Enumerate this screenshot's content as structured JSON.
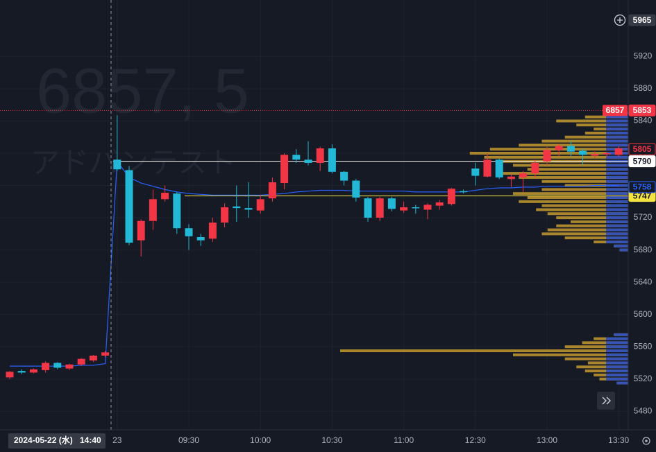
{
  "chart_data": {
    "type": "candlestick",
    "watermark": {
      "symbol_line": "6857, 5",
      "name": "アドバンテスト"
    },
    "categories": [
      null,
      null,
      null,
      null,
      null,
      null,
      null,
      null,
      null,
      "23",
      null,
      null,
      null,
      null,
      null,
      "09:30",
      null,
      null,
      null,
      null,
      null,
      "10:00",
      null,
      null,
      null,
      null,
      null,
      "10:30",
      null,
      null,
      null,
      null,
      null,
      "11:00",
      null,
      null,
      null,
      null,
      null,
      "12:30",
      null,
      null,
      null,
      null,
      null,
      "13:00",
      null,
      null,
      null,
      null,
      null,
      "13:30"
    ],
    "open": [
      5522,
      5530,
      5528,
      5531,
      5540,
      5533,
      5538,
      5543,
      5549,
      5792,
      5779,
      5692,
      5716,
      5743,
      5750,
      5707,
      5696,
      5694,
      5714,
      5734,
      5732,
      5729,
      5744,
      5763,
      5798,
      5792,
      5788,
      5806,
      5777,
      5766,
      5744,
      5720,
      5744,
      5729,
      5733,
      5730,
      5735,
      5737,
      5753,
      5781,
      5771,
      5792,
      5768,
      5770,
      5775,
      5790,
      5804,
      5809,
      5803,
      5797,
      5799,
      5798
    ],
    "high": [
      5530,
      5532,
      5533,
      5542,
      5541,
      5539,
      5546,
      5550,
      5555,
      5847,
      5784,
      5718,
      5755,
      5760,
      5752,
      5712,
      5700,
      5720,
      5738,
      5760,
      5764,
      5748,
      5770,
      5800,
      5805,
      5815,
      5808,
      5811,
      5778,
      5768,
      5746,
      5746,
      5746,
      5740,
      5736,
      5738,
      5742,
      5757,
      5755,
      5788,
      5800,
      5793,
      5774,
      5778,
      5792,
      5808,
      5812,
      5815,
      5806,
      5802,
      5802,
      5808
    ],
    "low": [
      5520,
      5526,
      5527,
      5528,
      5532,
      5531,
      5536,
      5541,
      5547,
      5778,
      5686,
      5672,
      5705,
      5740,
      5700,
      5680,
      5685,
      5690,
      5708,
      5715,
      5720,
      5725,
      5740,
      5755,
      5788,
      5785,
      5778,
      5775,
      5760,
      5740,
      5715,
      5716,
      5728,
      5726,
      5725,
      5718,
      5730,
      5735,
      5750,
      5760,
      5770,
      5768,
      5758,
      5752,
      5770,
      5785,
      5796,
      5796,
      5786,
      5794,
      5795,
      5796
    ],
    "close": [
      5529,
      5528,
      5532,
      5540,
      5534,
      5538,
      5545,
      5549,
      5553,
      5780,
      5689,
      5716,
      5743,
      5751,
      5707,
      5697,
      5692,
      5714,
      5733,
      5732,
      5730,
      5743,
      5764,
      5798,
      5792,
      5788,
      5806,
      5777,
      5766,
      5745,
      5720,
      5744,
      5731,
      5733,
      5732,
      5736,
      5739,
      5756,
      5752,
      5772,
      5792,
      5770,
      5771,
      5775,
      5788,
      5804,
      5809,
      5802,
      5798,
      5799,
      5800,
      5806
    ],
    "up_color": "#f23645",
    "down_color": "#22b8d6",
    "overlay_line": {
      "color": "#2962ff",
      "values": [
        5536,
        5536,
        5536,
        5536,
        5536,
        5536,
        5537,
        5537,
        5539,
        5790,
        5770,
        5763,
        5759,
        5755,
        5752,
        5750,
        5749,
        5748,
        5748,
        5748,
        5748,
        5748,
        5749,
        5750,
        5752,
        5753,
        5754,
        5754,
        5754,
        5753,
        5753,
        5753,
        5753,
        5753,
        5752,
        5752,
        5752,
        5752,
        5752,
        5754,
        5756,
        5757,
        5757,
        5758,
        5758,
        5759,
        5759,
        5759,
        5759,
        5760,
        5760,
        5760
      ]
    },
    "ylim": [
      5457,
      5990
    ],
    "yticks": [
      5480,
      5520,
      5560,
      5600,
      5640,
      5680,
      5720,
      5760,
      5800,
      5840,
      5880,
      5920
    ],
    "grid": true,
    "price_lines": [
      {
        "value": 5853,
        "color": "#f23645",
        "style": "dotted",
        "symbol": "6857"
      },
      {
        "value": 5790,
        "color": "#ffffff",
        "style": "solid"
      },
      {
        "value": 5747,
        "color": "#f5e342",
        "style": "solid"
      }
    ],
    "price_labels": [
      {
        "value": 5805,
        "color": "#f23645"
      },
      {
        "value": 5758,
        "color": "#2962ff"
      }
    ],
    "crosshair": {
      "price": 5965,
      "date": "2024-05-22 (水)",
      "time": "14:40"
    },
    "volume_profile": {
      "color": "#c49a2e",
      "inner_color": "#2a4fc4",
      "prices": [
        5850,
        5845,
        5840,
        5835,
        5830,
        5825,
        5820,
        5815,
        5810,
        5805,
        5800,
        5795,
        5790,
        5785,
        5780,
        5775,
        5770,
        5765,
        5760,
        5755,
        5750,
        5745,
        5740,
        5735,
        5730,
        5725,
        5720,
        5715,
        5710,
        5705,
        5700,
        5695,
        5690,
        5685,
        5680,
        5575,
        5570,
        5565,
        5560,
        5555,
        5550,
        5545,
        5540,
        5535,
        5530,
        5525,
        5520,
        5515
      ],
      "values": [
        8,
        15,
        25,
        18,
        12,
        15,
        22,
        30,
        38,
        48,
        55,
        50,
        45,
        40,
        35,
        45,
        38,
        30,
        22,
        30,
        40,
        35,
        38,
        30,
        32,
        28,
        25,
        20,
        25,
        28,
        30,
        22,
        12,
        5,
        3,
        5,
        12,
        16,
        22,
        100,
        40,
        22,
        14,
        18,
        15,
        12,
        10,
        4
      ]
    }
  }
}
